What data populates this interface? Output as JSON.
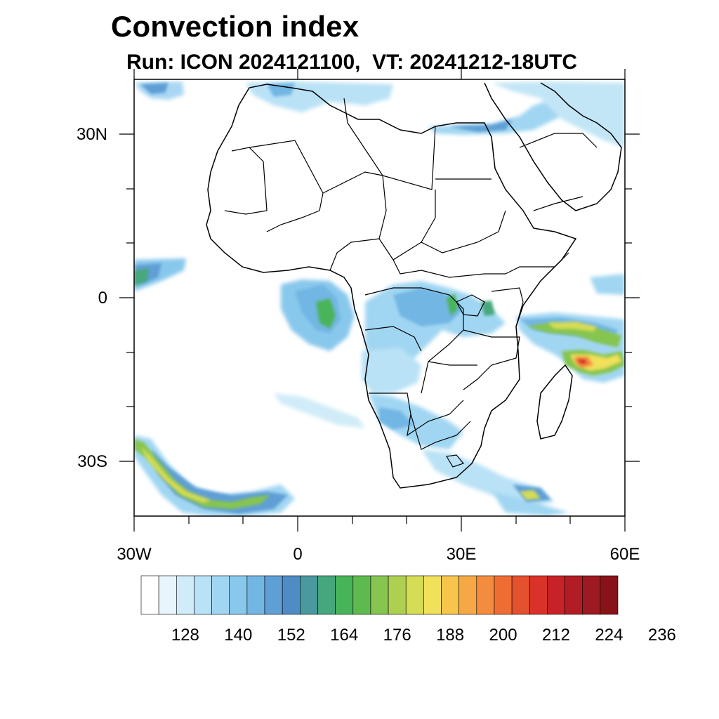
{
  "title": "Convection index",
  "subtitle": "Run: ICON 2024121100,  VT: 20241212-18UTC",
  "axes": {
    "x_ticks": [
      "30W",
      "0",
      "30E",
      "60E"
    ],
    "y_ticks": [
      "30N",
      "0",
      "30S"
    ],
    "lon_range": [
      -30,
      60
    ],
    "lat_range": [
      -40,
      40
    ]
  },
  "colorbar": {
    "labels": [
      "128",
      "140",
      "152",
      "164",
      "176",
      "188",
      "200",
      "212",
      "224",
      "236"
    ],
    "colors": [
      "#ffffff",
      "#e8f5fc",
      "#d0ecf8",
      "#b9e2f6",
      "#a0d6f2",
      "#88c8ec",
      "#72b6e4",
      "#5e9fd5",
      "#4f8cc6",
      "#4a999e",
      "#46a77d",
      "#48b45a",
      "#5eba4c",
      "#86c54f",
      "#aed051",
      "#d5dc55",
      "#f0e05a",
      "#f7c54c",
      "#f5a845",
      "#f48c3d",
      "#ee6d34",
      "#e4512d",
      "#d93229",
      "#c72228",
      "#b21d25",
      "#9d1a22",
      "#871318"
    ]
  }
}
